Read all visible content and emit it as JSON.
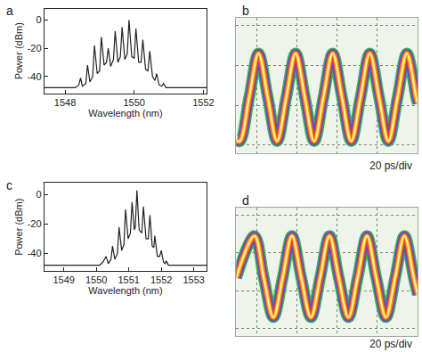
{
  "chart_data": [
    {
      "type": "line",
      "title": "a",
      "xlabel": "Wavelength (nm)",
      "ylabel": "Power (dBm)",
      "x": [
        1547.4,
        1548.3,
        1548.4,
        1548.45,
        1548.5,
        1548.6,
        1548.65,
        1548.72,
        1548.8,
        1548.85,
        1548.93,
        1549.0,
        1549.05,
        1549.13,
        1549.2,
        1549.25,
        1549.32,
        1549.4,
        1549.45,
        1549.53,
        1549.6,
        1549.65,
        1549.73,
        1549.8,
        1549.85,
        1549.93,
        1550.0,
        1550.05,
        1550.13,
        1550.2,
        1550.25,
        1550.33,
        1550.4,
        1550.45,
        1550.53,
        1550.6,
        1550.65,
        1550.72,
        1550.8,
        1550.85,
        1550.92,
        1552.1
      ],
      "series": [
        {
          "color": "#222222",
          "values": [
            -48,
            -48,
            -46,
            -41,
            -47,
            -45,
            -32,
            -44,
            -40,
            -18,
            -38,
            -36,
            -12,
            -32,
            -30,
            -20,
            -33,
            -28,
            -8,
            -30,
            -26,
            -5,
            -28,
            -24,
            0,
            -26,
            -27,
            -6,
            -30,
            -30,
            -14,
            -35,
            -36,
            -22,
            -40,
            -43,
            -38,
            -46,
            -47,
            -45,
            -48,
            -48
          ]
        }
      ],
      "xlim": [
        1547.4,
        1552.1
      ],
      "xticks": [
        1548,
        1550,
        1552
      ],
      "ylim": [
        -52,
        8
      ],
      "yticks": [
        -40,
        -20,
        0
      ],
      "grid": false
    },
    {
      "type": "line",
      "title": "b",
      "xlabel": "20 ps/div",
      "x": [
        0,
        0.09,
        0.32,
        0.55,
        0.78,
        1.01,
        1.24,
        1.47,
        1.7,
        1.93,
        2.16,
        2.39,
        2.62,
        2.85,
        3.08,
        3.31,
        3.54,
        3.77,
        4.0,
        4.23,
        4.46,
        4.5
      ],
      "series": [
        {
          "color": "#f5a01a",
          "values": [
            0.32,
            0.3,
            1.4,
            2.5,
            1.4,
            0.3,
            1.4,
            2.5,
            1.4,
            0.3,
            1.4,
            2.5,
            1.4,
            0.3,
            1.4,
            2.5,
            1.4,
            0.3,
            1.4,
            2.5,
            1.4,
            1.25
          ]
        }
      ],
      "xlim": [
        0,
        4.5
      ],
      "xticks": [
        0.5,
        1.5,
        2.5,
        3.5,
        4.5
      ],
      "ylim": [
        0,
        3.4
      ],
      "yticks": [
        0.2,
        1.2,
        2.2,
        3.2
      ],
      "grid": true,
      "tick_labels": false
    },
    {
      "type": "line",
      "title": "c",
      "xlabel": "Wavelength (nm)",
      "ylabel": "Power (dBm)",
      "x": [
        1548.4,
        1550.1,
        1550.2,
        1550.3,
        1550.37,
        1550.45,
        1550.5,
        1550.57,
        1550.65,
        1550.7,
        1550.78,
        1550.85,
        1550.9,
        1550.98,
        1551.05,
        1551.1,
        1551.17,
        1551.2,
        1551.25,
        1551.32,
        1551.4,
        1551.45,
        1551.53,
        1551.6,
        1551.65,
        1551.72,
        1551.77,
        1551.8,
        1551.88,
        1551.95,
        1552.0,
        1552.07,
        1552.12,
        1552.15,
        1552.22,
        1553.4
      ],
      "series": [
        {
          "color": "#222222",
          "values": [
            -48,
            -48,
            -46,
            -42,
            -47,
            -44,
            -35,
            -44,
            -40,
            -22,
            -38,
            -34,
            -10,
            -30,
            -26,
            -5,
            -24,
            -22,
            3,
            -24,
            -26,
            -8,
            -30,
            -30,
            -14,
            -35,
            -36,
            -28,
            -42,
            -42,
            -38,
            -46,
            -47,
            -45,
            -48,
            -48
          ]
        }
      ],
      "xlim": [
        1548.4,
        1553.4
      ],
      "xticks": [
        1549,
        1550,
        1551,
        1552,
        1553
      ],
      "ylim": [
        -52,
        8
      ],
      "yticks": [
        -40,
        -20,
        0
      ],
      "grid": false
    },
    {
      "type": "line",
      "title": "d",
      "xlabel": "20 ps/div",
      "x": [
        0,
        0.45,
        0.68,
        0.92,
        1.15,
        1.38,
        1.61,
        1.85,
        2.08,
        2.31,
        2.54,
        2.78,
        3.01,
        3.24,
        3.47,
        3.71,
        3.94,
        4.17,
        4.4,
        4.5
      ],
      "series": [
        {
          "color": "#f5a01a",
          "values": [
            1.55,
            2.65,
            1.55,
            0.5,
            1.55,
            2.65,
            1.55,
            0.5,
            1.55,
            2.65,
            1.55,
            0.5,
            1.55,
            2.65,
            1.55,
            0.5,
            1.55,
            2.65,
            1.55,
            1.1
          ]
        }
      ],
      "xlim": [
        0,
        4.5
      ],
      "xticks": [
        0.5,
        1.5,
        2.5,
        3.5,
        4.5
      ],
      "ylim": [
        0,
        3.4
      ],
      "yticks": [
        0.2,
        1.2,
        2.2,
        3.2
      ],
      "grid": true,
      "tick_labels": false
    }
  ]
}
